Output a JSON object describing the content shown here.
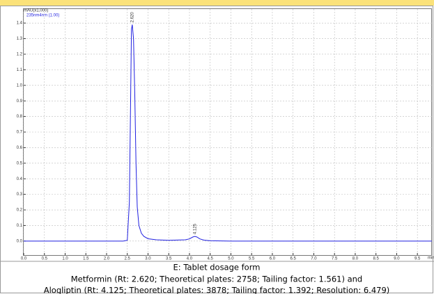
{
  "chart_data": {
    "type": "line",
    "y_axis_label": "mAU(x1,000)",
    "series": [
      {
        "name": "235nm4nm (1.00)",
        "color": "#1f1fe0",
        "x": [
          0,
          2.4,
          2.5,
          2.55,
          2.58,
          2.6,
          2.62,
          2.65,
          2.68,
          2.71,
          2.74,
          2.78,
          2.84,
          2.9,
          3.0,
          3.2,
          3.5,
          3.9,
          4.0,
          4.08,
          4.13,
          4.18,
          4.25,
          4.35,
          4.5,
          5.0,
          9.85
        ],
        "values": [
          0,
          0,
          0.005,
          0.25,
          0.9,
          1.36,
          1.39,
          1.3,
          0.95,
          0.5,
          0.22,
          0.1,
          0.05,
          0.03,
          0.015,
          0.008,
          0.005,
          0.008,
          0.014,
          0.026,
          0.03,
          0.026,
          0.014,
          0.006,
          0.002,
          0,
          0
        ]
      }
    ],
    "annotations": [
      {
        "text": "2.620",
        "x": 2.62,
        "y": 1.39
      },
      {
        "text": "4.125",
        "x": 4.13,
        "y": 0.03
      }
    ],
    "xlim": [
      0,
      9.85
    ],
    "ylim": [
      -0.09,
      1.49
    ],
    "x_unit": "min",
    "xticks": [
      {
        "value": 0,
        "label": "0.0"
      },
      {
        "value": 0.5,
        "label": "0.5"
      },
      {
        "value": 1,
        "label": "1.0"
      },
      {
        "value": 1.5,
        "label": "1.5"
      },
      {
        "value": 2,
        "label": "2.0"
      },
      {
        "value": 2.5,
        "label": "2.5"
      },
      {
        "value": 3,
        "label": "3.0"
      },
      {
        "value": 3.5,
        "label": "3.5"
      },
      {
        "value": 4,
        "label": "4.0"
      },
      {
        "value": 4.5,
        "label": "4.5"
      },
      {
        "value": 5,
        "label": "5.0"
      },
      {
        "value": 5.5,
        "label": "5.5"
      },
      {
        "value": 6,
        "label": "6.0"
      },
      {
        "value": 6.5,
        "label": "6.5"
      },
      {
        "value": 7,
        "label": "7.0"
      },
      {
        "value": 7.5,
        "label": "7.5"
      },
      {
        "value": 8,
        "label": "8.0"
      },
      {
        "value": 8.5,
        "label": "8.5"
      },
      {
        "value": 9,
        "label": "9.0"
      },
      {
        "value": 9.5,
        "label": "9.5"
      }
    ],
    "yticks": [
      {
        "value": 0,
        "label": "0.0"
      },
      {
        "value": 0.1,
        "label": "0.1"
      },
      {
        "value": 0.2,
        "label": "0.2"
      },
      {
        "value": 0.3,
        "label": "0.3"
      },
      {
        "value": 0.4,
        "label": "0.4"
      },
      {
        "value": 0.5,
        "label": "0.5"
      },
      {
        "value": 0.6,
        "label": "0.6"
      },
      {
        "value": 0.7,
        "label": "0.7"
      },
      {
        "value": 0.8,
        "label": "0.8"
      },
      {
        "value": 0.9,
        "label": "0.9"
      },
      {
        "value": 1,
        "label": "1.0"
      },
      {
        "value": 1.1,
        "label": "1.1"
      },
      {
        "value": 1.2,
        "label": "1.2"
      },
      {
        "value": 1.3,
        "label": "1.3"
      },
      {
        "value": 1.4,
        "label": "1.4"
      }
    ],
    "grid": true,
    "caption": [
      "E: Tablet dosage form",
      "Metformin (Rt: 2.620; Theoretical plates: 2758; Tailing factor: 1.561) and",
      "Alogliptin (Rt: 4.125; Theoretical plates: 3878; Tailing factor: 1.392; Resolution: 6.479)"
    ]
  }
}
